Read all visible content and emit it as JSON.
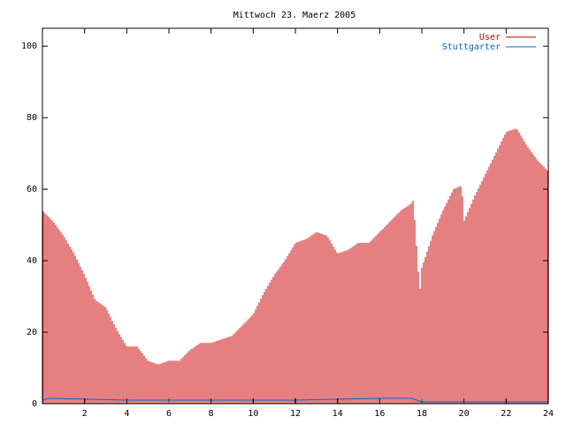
{
  "chart_data": {
    "type": "bar",
    "title": "Mittwoch 23. Maerz 2005",
    "xlabel": "",
    "ylabel": "",
    "xlim": [
      0,
      24
    ],
    "ylim": [
      0,
      105
    ],
    "xticks": [
      "2",
      "4",
      "6",
      "8",
      "10",
      "12",
      "14",
      "16",
      "18",
      "20",
      "22",
      "24"
    ],
    "yticks": [
      "0",
      "20",
      "40",
      "60",
      "80",
      "100"
    ],
    "grid": false,
    "legend_position": "top-right",
    "series": [
      {
        "name": "User",
        "color": "#cc0000",
        "x": [
          0,
          0.5,
          1,
          1.5,
          2,
          2.5,
          3,
          3.5,
          4,
          4.5,
          5,
          5.5,
          6,
          6.5,
          7,
          7.5,
          8,
          8.5,
          9,
          9.5,
          10,
          10.5,
          11,
          11.5,
          12,
          12.5,
          13,
          13.5,
          14,
          14.5,
          15,
          15.5,
          16,
          16.5,
          17,
          17.5,
          17.6,
          17.9,
          18,
          18.5,
          19,
          19.5,
          19.9,
          20,
          20.5,
          21,
          21.5,
          22,
          22.5,
          23,
          23.5,
          24
        ],
        "values": [
          54,
          51,
          47,
          42,
          36,
          29,
          27,
          21,
          16,
          16,
          12,
          11,
          12,
          12,
          15,
          17,
          17,
          18,
          19,
          22,
          25,
          31,
          36,
          40,
          45,
          46,
          48,
          47,
          42,
          43,
          45,
          45,
          48,
          51,
          54,
          56,
          57,
          31,
          38,
          47,
          54,
          60,
          61,
          51,
          58,
          64,
          70,
          76,
          77,
          72,
          68,
          65
        ]
      },
      {
        "name": "Stuttgarter",
        "color": "#0066cc",
        "x": [
          0,
          0.3,
          4,
          8,
          12,
          16,
          17.5,
          18,
          24
        ],
        "values": [
          1,
          1.5,
          1,
          1,
          1,
          1.5,
          1.5,
          0.5,
          0.5
        ]
      }
    ]
  }
}
